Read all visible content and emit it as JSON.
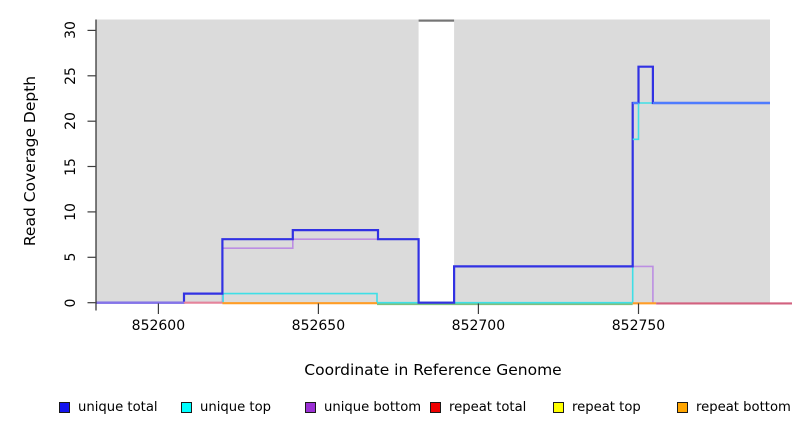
{
  "chart_data": {
    "type": "line",
    "subtype": "step-coverage",
    "title": "",
    "xlabel": "Coordinate in Reference Genome",
    "ylabel": "Read Coverage Depth",
    "xlim": [
      852580.5,
      852791.1
    ],
    "ylim": [
      0,
      31.2
    ],
    "x_ticks": [
      852600,
      852650,
      852700,
      852750
    ],
    "x_tick_labels": [
      "852600",
      "852650",
      "852700",
      "852750"
    ],
    "y_ticks": [
      0,
      5,
      10,
      15,
      20,
      25,
      30
    ],
    "y_tick_labels": [
      "0",
      "5",
      "10",
      "15",
      "20",
      "25",
      "30"
    ],
    "grid": false,
    "legend_position": "bottom",
    "panel_background": "#DBDBDB",
    "figure_background": "#FFFFFF",
    "masked_region": {
      "from": 852681.3,
      "to": 852692.4,
      "fill": "#FFFFFF",
      "top_bar_color": "#757575"
    },
    "series": [
      {
        "name": "unique total",
        "color": "#3131E3",
        "width": 2.2,
        "z": 3,
        "steps": [
          [
            852580.5,
            0
          ],
          [
            852608,
            1
          ],
          [
            852620,
            7
          ],
          [
            852642,
            8
          ],
          [
            852668.6,
            7
          ],
          [
            852681.3,
            0
          ],
          [
            852692.4,
            4
          ],
          [
            852748.2,
            22
          ],
          [
            852750,
            26
          ],
          [
            852754.5,
            22
          ],
          [
            852791.1,
            22
          ]
        ]
      },
      {
        "name": "unique top",
        "color": "#3FDFE6",
        "width": 1.6,
        "z": 2,
        "steps": [
          [
            852620,
            0
          ],
          [
            852620.2,
            1
          ],
          [
            852668.3,
            0
          ],
          [
            852748.2,
            22
          ],
          [
            852791.1,
            22
          ]
        ]
      },
      {
        "name": "unique bottom",
        "color": "#BC8EE2",
        "width": 1.6,
        "z": 1,
        "steps": [
          [
            852580.5,
            0
          ],
          [
            852620,
            6
          ],
          [
            852642,
            7
          ],
          [
            852681.3,
            0
          ],
          [
            852692.4,
            4
          ],
          [
            852754.5,
            0
          ]
        ]
      },
      {
        "name": "repeat total",
        "color": "#EE0000",
        "width": 1.6,
        "z": 0,
        "render": false,
        "steps": [
          [
            852580.5,
            0
          ],
          [
            852791.1,
            0
          ]
        ]
      },
      {
        "name": "repeat top",
        "color": "#FFFF00",
        "width": 1.6,
        "z": 0,
        "render": false,
        "steps": [
          [
            852580.5,
            0
          ],
          [
            852791.1,
            0
          ]
        ]
      },
      {
        "name": "repeat bottom",
        "color": "#FFA500",
        "width": 1.6,
        "z": 0,
        "render": false,
        "steps": [
          [
            852580.5,
            0
          ],
          [
            852791.1,
            0
          ]
        ]
      }
    ],
    "baseline_segments": [
      {
        "from": 852580.5,
        "to": 852608,
        "color": "#8673E8",
        "dy": 0,
        "layer": "over"
      },
      {
        "from": 852608,
        "to": 852620,
        "color": "#E5839B",
        "dy": 0,
        "layer": "over"
      },
      {
        "from": 852620,
        "to": 852668.3,
        "color": "#FF9D26",
        "dy": 0.5,
        "layer": "over"
      },
      {
        "from": 852668.3,
        "to": 852748.2,
        "color": "#7FBF7F",
        "dy": 1.4,
        "layer": "under"
      },
      {
        "from": 852748.2,
        "to": 852755.5,
        "color": "#FF9D26",
        "dy": 0.6,
        "layer": "over"
      },
      {
        "from": 852755.5,
        "to": 852798,
        "color": "#D2617F",
        "dy": 0.7,
        "layer": "over"
      }
    ],
    "extra_lines": [
      {
        "name": "unique-top-notch",
        "color": "#3FDFE6",
        "width": 1.6,
        "points": [
          [
            852748.2,
            18
          ],
          [
            852750,
            18
          ],
          [
            852750,
            22
          ]
        ]
      },
      {
        "name": "total-22-bright-a",
        "color": "#4E7CFE",
        "width": 2.2,
        "points": [
          [
            852748.2,
            22
          ],
          [
            852750,
            22
          ]
        ]
      },
      {
        "name": "total-22-bright-b",
        "color": "#4E7CFE",
        "width": 2.2,
        "points": [
          [
            852754.5,
            22
          ],
          [
            852791.1,
            22
          ]
        ]
      }
    ],
    "legend": [
      {
        "label": "unique total",
        "color": "#1414EE"
      },
      {
        "label": "unique top",
        "color": "#00FFFF"
      },
      {
        "label": "unique bottom",
        "color": "#9B30D5"
      },
      {
        "label": "repeat total",
        "color": "#EE0000"
      },
      {
        "label": "repeat top",
        "color": "#FFFF00"
      },
      {
        "label": "repeat bottom",
        "color": "#FFA500"
      }
    ]
  }
}
